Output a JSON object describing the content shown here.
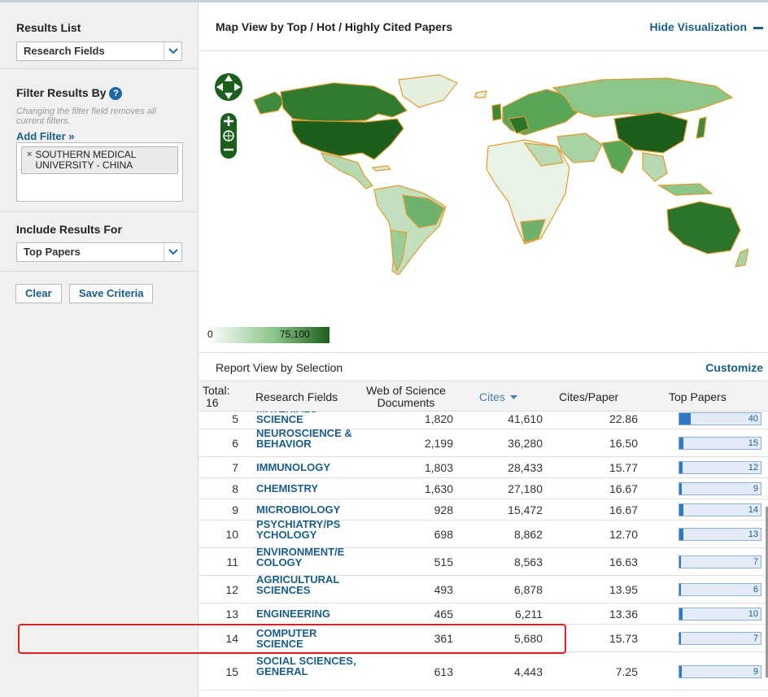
{
  "sidebar": {
    "results_list": {
      "heading": "Results List",
      "selected": "Research Fields"
    },
    "filter": {
      "heading": "Filter Results By",
      "help_glyph": "?",
      "note": "Changing the filter field removes all current filters.",
      "add_filter": "Add Filter »",
      "chip": "SOUTHERN MEDICAL UNIVERSITY - CHINA",
      "chip_remove": "×"
    },
    "include": {
      "heading": "Include Results For",
      "selected": "Top Papers"
    },
    "buttons": {
      "clear": "Clear",
      "save": "Save Criteria"
    }
  },
  "map": {
    "title": "Map View by Top / Hot / Highly Cited Papers",
    "hide_link": "Hide Visualization",
    "legend_min": "0",
    "legend_max": "75,100",
    "colors": {
      "low": "#ffffff",
      "high": "#1c5e1c",
      "border": "#e29b2c"
    }
  },
  "report": {
    "title": "Report View by Selection",
    "customize": "Customize",
    "headers": {
      "total": "Total:",
      "total_value": "16",
      "field": "Research Fields",
      "docs": "Web of Science Documents",
      "cites": "Cites",
      "cpp": "Cites/Paper",
      "top": "Top Papers"
    },
    "rows": [
      {
        "rank": "5",
        "field": "MATERIALS SCIENCE",
        "docs": "1,820",
        "cites": "41,610",
        "cpp": "22.86",
        "top": "40",
        "top_value": 40
      },
      {
        "rank": "6",
        "field": "NEUROSCIENCE & BEHAVIOR",
        "docs": "2,199",
        "cites": "36,280",
        "cpp": "16.50",
        "top": "15",
        "top_value": 15
      },
      {
        "rank": "7",
        "field": "IMMUNOLOGY",
        "docs": "1,803",
        "cites": "28,433",
        "cpp": "15.77",
        "top": "12",
        "top_value": 12
      },
      {
        "rank": "8",
        "field": "CHEMISTRY",
        "docs": "1,630",
        "cites": "27,180",
        "cpp": "16.67",
        "top": "9",
        "top_value": 9
      },
      {
        "rank": "9",
        "field": "MICROBIOLOGY",
        "docs": "928",
        "cites": "15,472",
        "cpp": "16.67",
        "top": "14",
        "top_value": 14
      },
      {
        "rank": "10",
        "field": "PSYCHIATRY/PS YCHOLOGY",
        "docs": "698",
        "cites": "8,862",
        "cpp": "12.70",
        "top": "13",
        "top_value": 13
      },
      {
        "rank": "11",
        "field": "ENVIRONMENT/E COLOGY",
        "docs": "515",
        "cites": "8,563",
        "cpp": "16.63",
        "top": "7",
        "top_value": 7
      },
      {
        "rank": "12",
        "field": "AGRICULTURAL SCIENCES",
        "docs": "493",
        "cites": "6,878",
        "cpp": "13.95",
        "top": "6",
        "top_value": 6
      },
      {
        "rank": "13",
        "field": "ENGINEERING",
        "docs": "465",
        "cites": "6,211",
        "cpp": "13.36",
        "top": "10",
        "top_value": 10
      },
      {
        "rank": "14",
        "field": "COMPUTER SCIENCE",
        "docs": "361",
        "cites": "5,680",
        "cpp": "15.73",
        "top": "7",
        "top_value": 7
      },
      {
        "rank": "15",
        "field": "SOCIAL SCIENCES, GENERAL",
        "docs": "613",
        "cites": "4,443",
        "cpp": "7.25",
        "top": "9",
        "top_value": 9
      }
    ]
  }
}
